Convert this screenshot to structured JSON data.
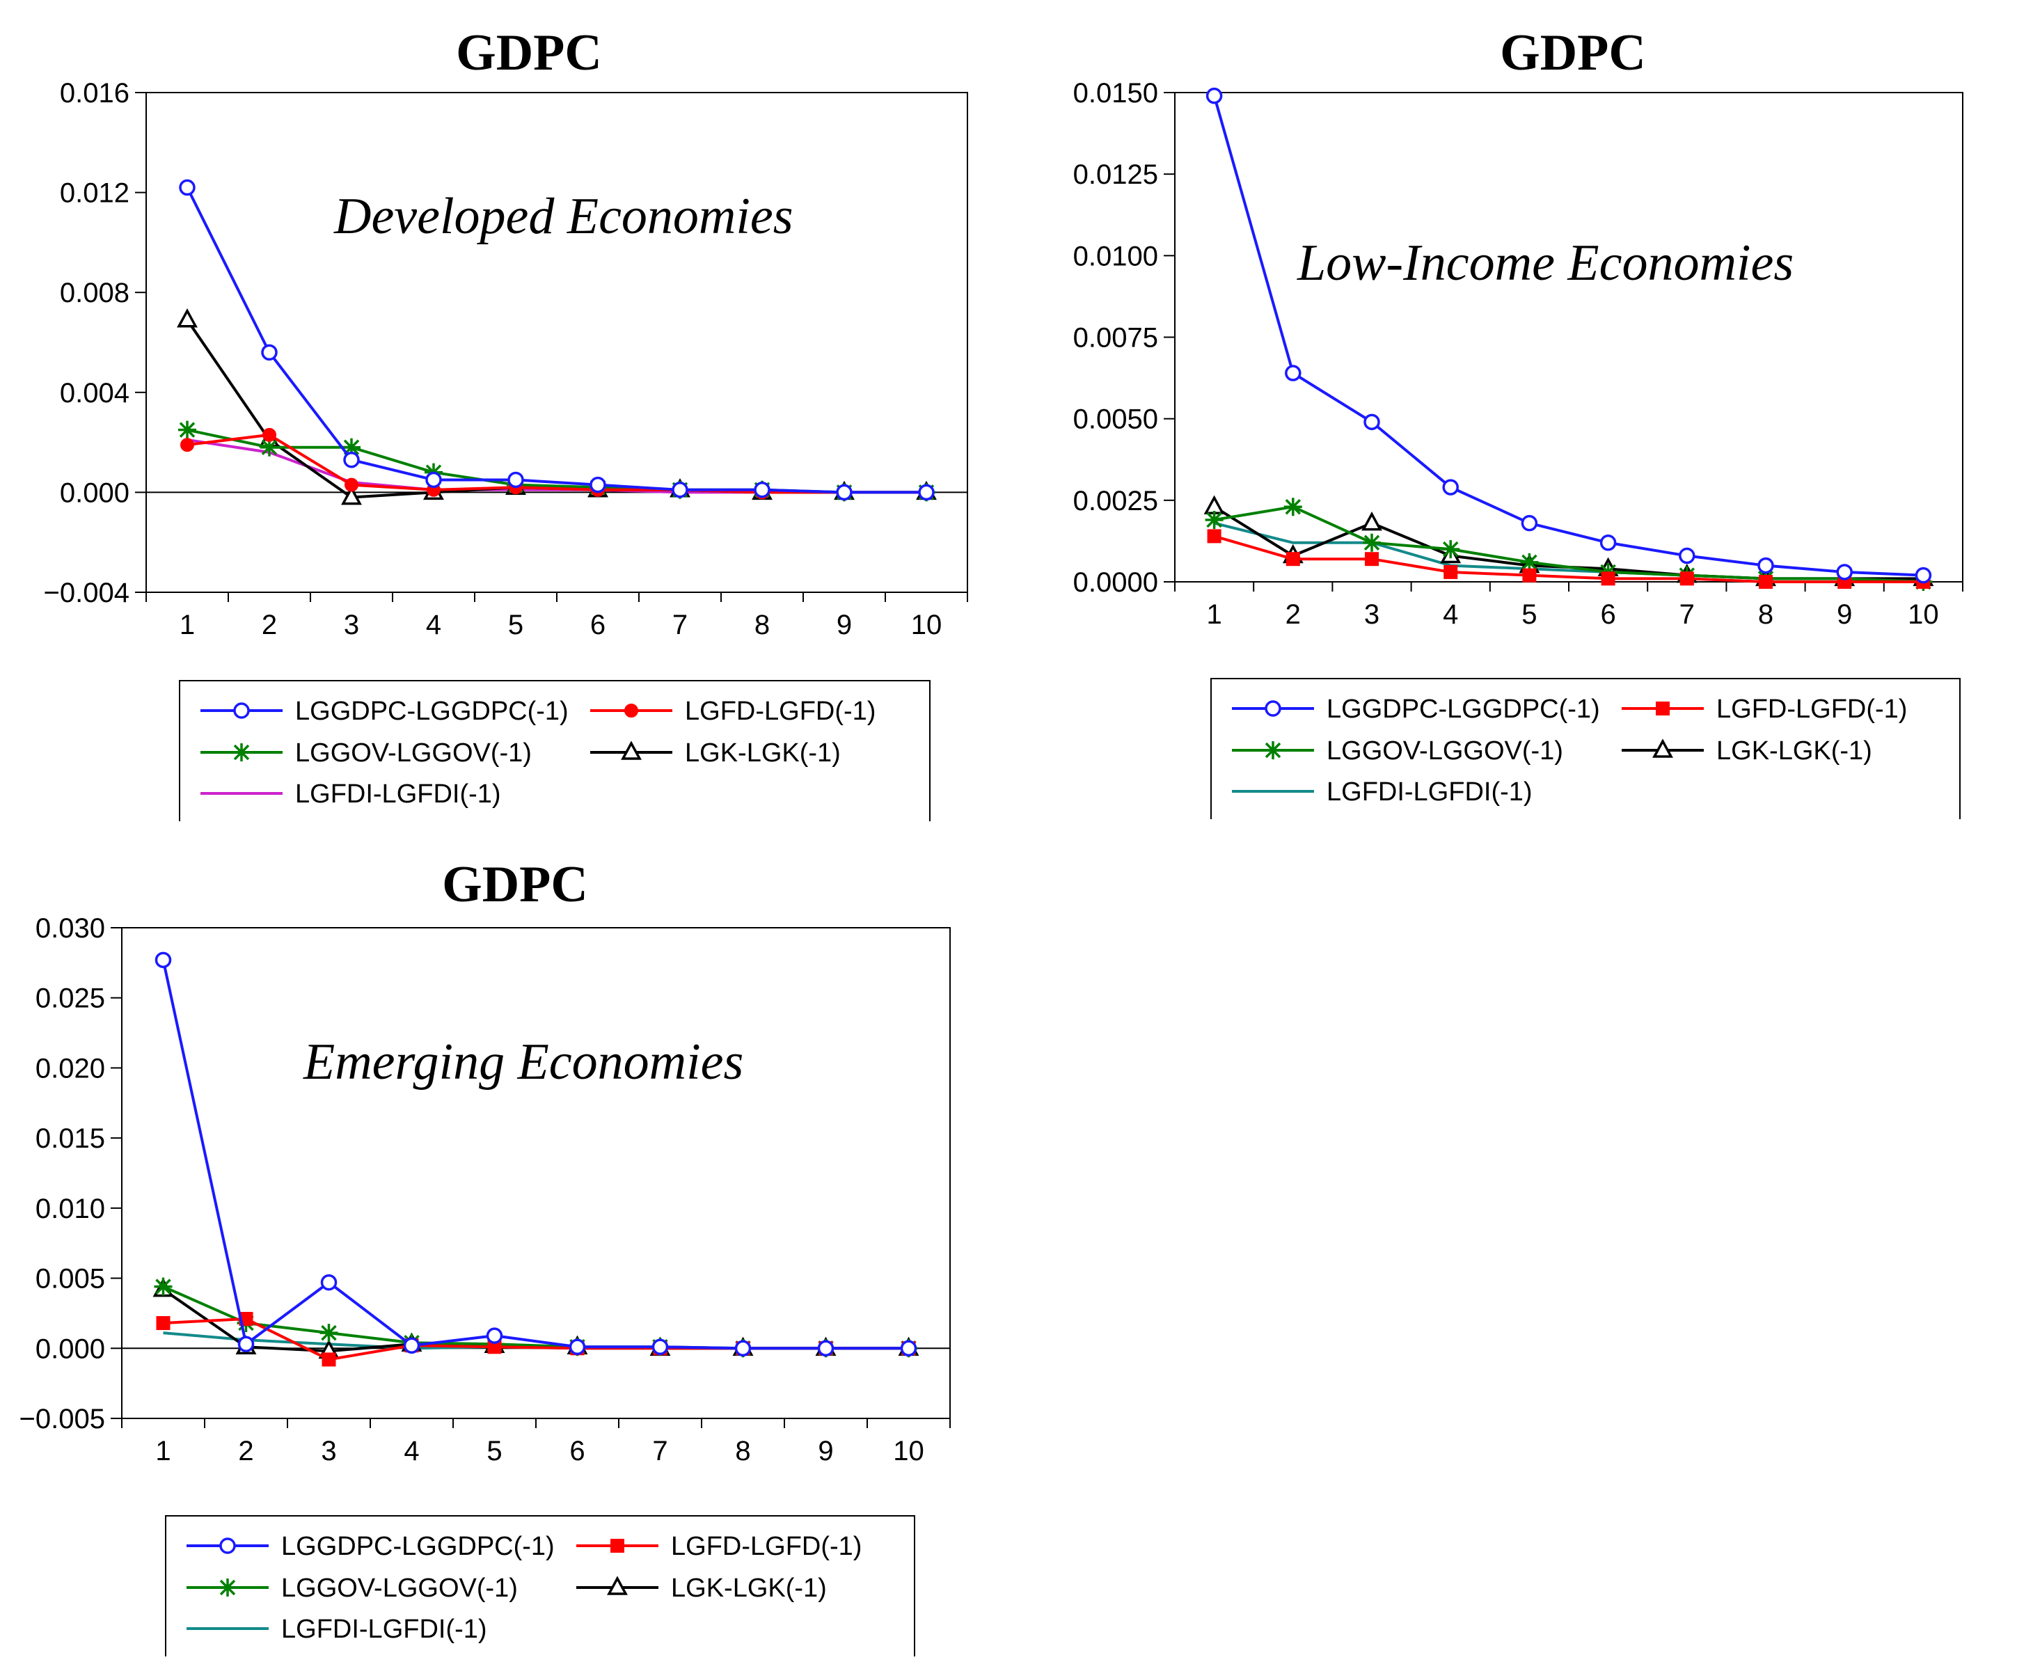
{
  "chart_data": [
    {
      "type": "line",
      "title": "GDPC",
      "annotation": "Developed Economies",
      "x": [
        1,
        2,
        3,
        4,
        5,
        6,
        7,
        8,
        9,
        10
      ],
      "ylim": [
        -0.004,
        0.016
      ],
      "yticks": [
        "0.016",
        "0.012",
        "0.008",
        "0.004",
        "0.000",
        "−0.004"
      ],
      "ytick_values": [
        0.016,
        0.012,
        0.008,
        0.004,
        0.0,
        -0.004
      ],
      "xticks": [
        "1",
        "2",
        "3",
        "4",
        "5",
        "6",
        "7",
        "8",
        "9",
        "10"
      ],
      "legend_position": "bottom",
      "series": [
        {
          "name": "LGGDPC-LGGDPC(-1)",
          "color": "#1a1aff",
          "marker": "circle-open",
          "values": [
            0.0122,
            0.0056,
            0.0013,
            0.0005,
            0.0005,
            0.0003,
            0.0001,
            0.0001,
            0.0,
            0.0
          ]
        },
        {
          "name": "LGFD-LGFD(-1)",
          "color": "#ff0000",
          "marker": "dot-filled",
          "values": [
            0.0019,
            0.0023,
            0.0003,
            0.0001,
            0.0002,
            0.0001,
            0.0001,
            0.0,
            0.0,
            0.0
          ]
        },
        {
          "name": "LGGOV-LGGOV(-1)",
          "color": "#008000",
          "marker": "star",
          "values": [
            0.0025,
            0.0018,
            0.0018,
            0.0008,
            0.0003,
            0.0002,
            0.0001,
            0.0001,
            0.0,
            0.0
          ]
        },
        {
          "name": "LGK-LGK(-1)",
          "color": "#000000",
          "marker": "triangle-open",
          "values": [
            0.0069,
            0.0021,
            -0.0002,
            0.0,
            0.0002,
            0.0001,
            0.0001,
            0.0,
            0.0,
            0.0
          ]
        },
        {
          "name": "LGFDI-LGFDI(-1)",
          "color": "#cc22cc",
          "marker": "none",
          "values": [
            0.0021,
            0.0016,
            0.0004,
            0.0001,
            0.0001,
            0.0001,
            0.0,
            0.0,
            0.0,
            0.0
          ]
        }
      ]
    },
    {
      "type": "line",
      "title": "GDPC",
      "annotation": "Low-Income Economies",
      "x": [
        1,
        2,
        3,
        4,
        5,
        6,
        7,
        8,
        9,
        10
      ],
      "ylim": [
        0.0,
        0.015
      ],
      "yticks": [
        "0.0150",
        "0.0125",
        "0.0100",
        "0.0075",
        "0.0050",
        "0.0025",
        "0.0000"
      ],
      "ytick_values": [
        0.015,
        0.0125,
        0.01,
        0.0075,
        0.005,
        0.0025,
        0.0
      ],
      "xticks": [
        "1",
        "2",
        "3",
        "4",
        "5",
        "6",
        "7",
        "8",
        "9",
        "10"
      ],
      "legend_position": "bottom",
      "series": [
        {
          "name": "LGGDPC-LGGDPC(-1)",
          "color": "#1a1aff",
          "marker": "circle-open",
          "values": [
            0.0149,
            0.0064,
            0.0049,
            0.0029,
            0.0018,
            0.0012,
            0.0008,
            0.0005,
            0.0003,
            0.0002
          ]
        },
        {
          "name": "LGFD-LGFD(-1)",
          "color": "#ff0000",
          "marker": "square-filled",
          "values": [
            0.0014,
            0.0007,
            0.0007,
            0.0003,
            0.0002,
            0.0001,
            0.0001,
            0.0,
            0.0,
            0.0
          ]
        },
        {
          "name": "LGGOV-LGGOV(-1)",
          "color": "#008000",
          "marker": "star",
          "values": [
            0.0019,
            0.0023,
            0.0012,
            0.001,
            0.0006,
            0.0003,
            0.0002,
            0.0001,
            0.0001,
            0.0
          ]
        },
        {
          "name": "LGK-LGK(-1)",
          "color": "#000000",
          "marker": "triangle-open",
          "values": [
            0.0023,
            0.0008,
            0.0018,
            0.0008,
            0.0005,
            0.0004,
            0.0002,
            0.0001,
            0.0001,
            0.0001
          ]
        },
        {
          "name": "LGFDI-LGFDI(-1)",
          "color": "#138a8a",
          "marker": "none",
          "values": [
            0.0018,
            0.0012,
            0.0012,
            0.0005,
            0.0004,
            0.0003,
            0.0002,
            0.0001,
            0.0001,
            0.0
          ]
        }
      ]
    },
    {
      "type": "line",
      "title": "GDPC",
      "annotation": "Emerging Economies",
      "x": [
        1,
        2,
        3,
        4,
        5,
        6,
        7,
        8,
        9,
        10
      ],
      "ylim": [
        -0.005,
        0.03
      ],
      "yticks": [
        "0.030",
        "0.025",
        "0.020",
        "0.015",
        "0.010",
        "0.005",
        "0.000",
        "−0.005"
      ],
      "ytick_values": [
        0.03,
        0.025,
        0.02,
        0.015,
        0.01,
        0.005,
        0.0,
        -0.005
      ],
      "xticks": [
        "1",
        "2",
        "3",
        "4",
        "5",
        "6",
        "7",
        "8",
        "9",
        "10"
      ],
      "legend_position": "bottom",
      "series": [
        {
          "name": "LGGDPC-LGGDPC(-1)",
          "color": "#1a1aff",
          "marker": "circle-open",
          "values": [
            0.0277,
            0.0003,
            0.0047,
            0.0002,
            0.0009,
            0.0001,
            0.0001,
            0.0,
            0.0,
            0.0
          ]
        },
        {
          "name": "LGFD-LGFD(-1)",
          "color": "#ff0000",
          "marker": "square-filled",
          "values": [
            0.0018,
            0.0021,
            -0.0008,
            0.0002,
            0.0001,
            0.0,
            0.0,
            0.0,
            0.0,
            0.0
          ]
        },
        {
          "name": "LGGOV-LGGOV(-1)",
          "color": "#008000",
          "marker": "star",
          "values": [
            0.0044,
            0.0018,
            0.0011,
            0.0004,
            0.0003,
            0.0001,
            0.0001,
            0.0,
            0.0,
            0.0
          ]
        },
        {
          "name": "LGK-LGK(-1)",
          "color": "#000000",
          "marker": "triangle-open",
          "values": [
            0.0042,
            0.0001,
            -0.0002,
            0.0003,
            0.0002,
            0.0001,
            0.0,
            0.0,
            0.0,
            0.0
          ]
        },
        {
          "name": "LGFDI-LGFDI(-1)",
          "color": "#138a8a",
          "marker": "none",
          "values": [
            0.0011,
            0.0006,
            0.0003,
            0.0,
            0.0001,
            0.0,
            0.0,
            0.0,
            0.0,
            0.0
          ]
        }
      ]
    }
  ]
}
